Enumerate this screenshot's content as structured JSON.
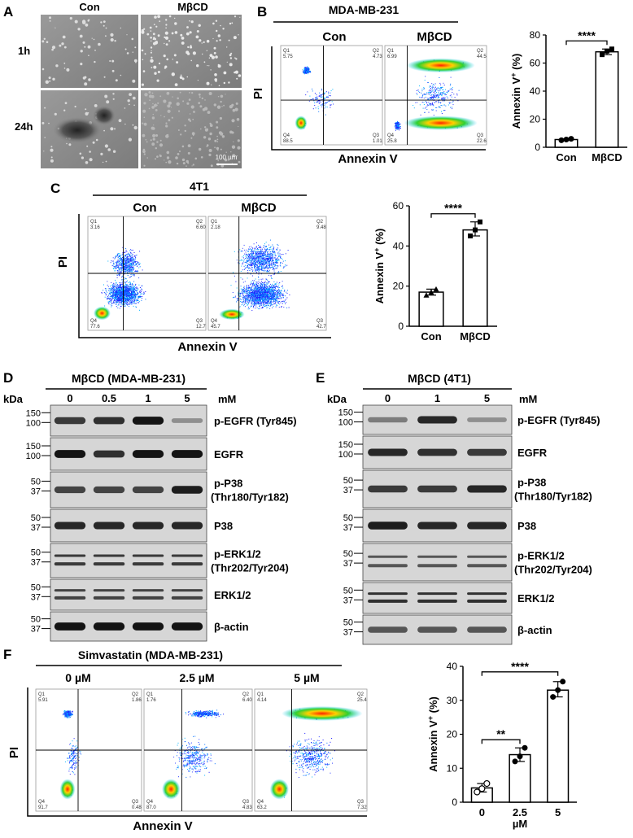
{
  "panel_letters": [
    "A",
    "B",
    "C",
    "D",
    "E",
    "F"
  ],
  "panelA": {
    "col_labels": [
      "Con",
      "MβCD"
    ],
    "row_labels": [
      "1h",
      "24h"
    ],
    "scale_bar": "100 µm"
  },
  "panelB": {
    "cell_line": "MDA-MB-231",
    "conditions": [
      "Con",
      "MβCD"
    ],
    "xaxis": "Annexin V",
    "yaxis": "PI",
    "plots": [
      {
        "q1_label": "Q1",
        "q1": "5.75",
        "q2_label": "Q2",
        "q2": "4.73",
        "q3_label": "Q3",
        "q3": "1.01",
        "q4_label": "Q4",
        "q4": "88.5"
      },
      {
        "q1_label": "Q1",
        "q1": "6.99",
        "q2_label": "Q2",
        "q2": "44.5",
        "q3_label": "Q3",
        "q3": "22.6",
        "q4_label": "Q4",
        "q4": "25.8"
      }
    ]
  },
  "panelC": {
    "cell_line": "4T1",
    "conditions": [
      "Con",
      "MβCD"
    ],
    "xaxis": "Annexin V",
    "yaxis": "PI",
    "plots": [
      {
        "q1_label": "Q1",
        "q1": "3.16",
        "q2_label": "Q2",
        "q2": "6.60",
        "q3_label": "Q3",
        "q3": "12.7",
        "q4_label": "Q4",
        "q4": "77.6"
      },
      {
        "q1_label": "Q1",
        "q1": "2.18",
        "q2_label": "Q2",
        "q2": "9.48",
        "q3_label": "Q3",
        "q3": "42.7",
        "q4_label": "Q4",
        "q4": "45.7"
      }
    ]
  },
  "panelD": {
    "title": "MβCD (MDA-MB-231)",
    "kda": "kDa",
    "unit": "mM",
    "lanes": [
      "0",
      "0.5",
      "1",
      "5"
    ],
    "blots": [
      {
        "label": "p-EGFR (Tyr845)",
        "markers": [
          "150",
          "100"
        ],
        "intensity": [
          0.75,
          0.8,
          0.95,
          0.3
        ]
      },
      {
        "label": "EGFR",
        "markers": [
          "150",
          "100"
        ],
        "intensity": [
          0.95,
          0.8,
          0.95,
          0.95
        ]
      },
      {
        "label": "p-P38",
        "label2": "(Thr180/Tyr182)",
        "markers": [
          "50",
          "37"
        ],
        "intensity": [
          0.7,
          0.7,
          0.7,
          0.9
        ]
      },
      {
        "label": "P38",
        "markers": [
          "50",
          "37"
        ],
        "intensity": [
          0.85,
          0.85,
          0.85,
          0.85
        ]
      },
      {
        "label": "p-ERK1/2",
        "label2": "(Thr202/Tyr204)",
        "markers": [
          "50",
          "37"
        ],
        "intensity": [
          0.75,
          0.75,
          0.75,
          0.75
        ]
      },
      {
        "label": "ERK1/2",
        "markers": [
          "50",
          "37"
        ],
        "intensity": [
          0.7,
          0.7,
          0.7,
          0.7
        ]
      },
      {
        "label": "β-actin",
        "markers": [
          "50",
          "37"
        ],
        "intensity": [
          0.95,
          0.95,
          0.95,
          0.95
        ]
      }
    ]
  },
  "panelE": {
    "title": "MβCD (4T1)",
    "kda": "kDa",
    "unit": "mM",
    "lanes": [
      "0",
      "1",
      "5"
    ],
    "blots": [
      {
        "label": "p-EGFR (Tyr845)",
        "markers": [
          "150",
          "100"
        ],
        "intensity": [
          0.4,
          0.85,
          0.3
        ]
      },
      {
        "label": "EGFR",
        "markers": [
          "150",
          "100"
        ],
        "intensity": [
          0.85,
          0.8,
          0.75
        ]
      },
      {
        "label": "p-P38",
        "label2": "(Thr180/Tyr182)",
        "markers": [
          "50",
          "37"
        ],
        "intensity": [
          0.75,
          0.75,
          0.85
        ]
      },
      {
        "label": "P38",
        "markers": [
          "50",
          "37"
        ],
        "intensity": [
          0.9,
          0.85,
          0.85
        ]
      },
      {
        "label": "p-ERK1/2",
        "label2": "(Thr202/Tyr204)",
        "markers": [
          "50",
          "37"
        ],
        "intensity": [
          0.6,
          0.6,
          0.6
        ]
      },
      {
        "label": "ERK1/2",
        "markers": [
          "50",
          "37"
        ],
        "intensity": [
          0.8,
          0.8,
          0.8
        ]
      },
      {
        "label": "β-actin",
        "markers": [
          "50",
          "37"
        ],
        "intensity": [
          0.6,
          0.6,
          0.6
        ]
      }
    ]
  },
  "panelF": {
    "title": "Simvastatin (MDA-MB-231)",
    "conditions": [
      "0 µM",
      "2.5 µM",
      "5 µM"
    ],
    "xaxis": "Annexin V",
    "yaxis": "PI",
    "plots": [
      {
        "q1_label": "Q1",
        "q1": "5.91",
        "q2_label": "Q2",
        "q2": "1.86",
        "q3_label": "Q3",
        "q3": "0.48",
        "q4_label": "Q4",
        "q4": "91.7"
      },
      {
        "q1_label": "Q1",
        "q1": "1.76",
        "q2_label": "Q2",
        "q2": "6.40",
        "q3_label": "Q3",
        "q3": "4.83",
        "q4_label": "Q4",
        "q4": "87.0"
      },
      {
        "q1_label": "Q1",
        "q1": "4.14",
        "q2_label": "Q2",
        "q2": "25.4",
        "q3_label": "Q3",
        "q3": "7.32",
        "q4_label": "Q4",
        "q4": "63.2"
      }
    ]
  },
  "chart_data": [
    {
      "type": "bar",
      "panel": "B",
      "categories": [
        "Con",
        "MβCD"
      ],
      "values": [
        5.5,
        68
      ],
      "points": [
        [
          5,
          5.5,
          6
        ],
        [
          66,
          68.5,
          70
        ]
      ],
      "ylabel": "Annexin V",
      "ylabel_sup": "+",
      "ylabel_suffix": " (%)",
      "ylim": [
        0,
        80
      ],
      "yticks": [
        "0",
        "20",
        "40",
        "60",
        "80"
      ],
      "markers": [
        "circle",
        "square"
      ],
      "significance": [
        "****"
      ]
    },
    {
      "type": "bar",
      "panel": "C",
      "categories": [
        "Con",
        "MβCD"
      ],
      "values": [
        17,
        48
      ],
      "points": [
        [
          15.5,
          17,
          18.5
        ],
        [
          45,
          48,
          52
        ]
      ],
      "ylabel": "Annexin V",
      "ylabel_sup": "+",
      "ylabel_suffix": " (%)",
      "ylim": [
        0,
        60
      ],
      "yticks": [
        "0",
        "20",
        "40",
        "60"
      ],
      "markers": [
        "triangle",
        "square"
      ],
      "significance": [
        "****"
      ]
    },
    {
      "type": "bar",
      "panel": "F",
      "categories": [
        "0",
        "2.5",
        "5"
      ],
      "values": [
        4.2,
        14,
        33
      ],
      "points": [
        [
          3,
          4,
          5.5
        ],
        [
          12,
          13.5,
          16
        ],
        [
          31,
          33,
          35.5
        ]
      ],
      "ylabel": "Annexin V",
      "ylabel_sup": "+",
      "ylabel_suffix": " (%)",
      "xlabel": "µM",
      "ylim": [
        0,
        40
      ],
      "yticks": [
        "0",
        "10",
        "20",
        "30",
        "40"
      ],
      "markers": [
        "open-circle",
        "circle-half",
        "circle"
      ],
      "significance": [
        "**",
        "****"
      ]
    }
  ]
}
